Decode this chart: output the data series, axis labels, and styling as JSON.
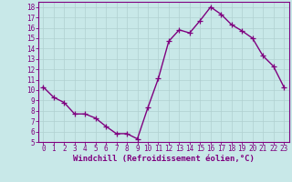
{
  "x": [
    0,
    1,
    2,
    3,
    4,
    5,
    6,
    7,
    8,
    9,
    10,
    11,
    12,
    13,
    14,
    15,
    16,
    17,
    18,
    19,
    20,
    21,
    22,
    23
  ],
  "y": [
    10.3,
    9.3,
    8.8,
    7.7,
    7.7,
    7.3,
    6.5,
    5.8,
    5.8,
    5.3,
    8.3,
    11.1,
    14.7,
    15.8,
    15.5,
    16.7,
    18.0,
    17.3,
    16.3,
    15.7,
    15.0,
    13.3,
    12.3,
    10.3
  ],
  "line_color": "#7f007f",
  "marker": "+",
  "marker_size": 4,
  "bg_color": "#c8e8e8",
  "grid_color": "#b0d0d0",
  "xlabel": "Windchill (Refroidissement éolien,°C)",
  "xlabel_color": "#7f007f",
  "tick_color": "#7f007f",
  "spine_color": "#7f007f",
  "xlim": [
    -0.5,
    23.5
  ],
  "ylim": [
    5,
    18.5
  ],
  "yticks": [
    5,
    6,
    7,
    8,
    9,
    10,
    11,
    12,
    13,
    14,
    15,
    16,
    17,
    18
  ],
  "xticks": [
    0,
    1,
    2,
    3,
    4,
    5,
    6,
    7,
    8,
    9,
    10,
    11,
    12,
    13,
    14,
    15,
    16,
    17,
    18,
    19,
    20,
    21,
    22,
    23
  ],
  "xtick_labels": [
    "0",
    "1",
    "2",
    "3",
    "4",
    "5",
    "6",
    "7",
    "8",
    "9",
    "10",
    "11",
    "12",
    "13",
    "14",
    "15",
    "16",
    "17",
    "18",
    "19",
    "20",
    "21",
    "22",
    "23"
  ],
  "font_family": "monospace",
  "xlabel_fontsize": 6.5,
  "tick_fontsize": 5.5,
  "line_width": 1.0,
  "marker_edge_width": 0.9
}
